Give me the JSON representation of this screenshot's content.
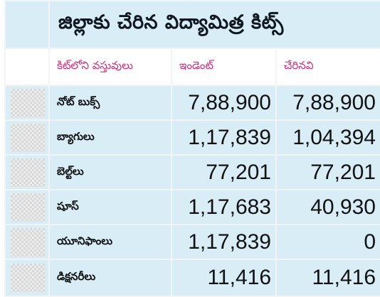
{
  "title": "జిల్లాకు చేరిన విద్యామిత్ర కిట్స్",
  "headers": {
    "item": "కిట్‌లోని వస్తువులు",
    "indent": "ఇండెంట్",
    "received": "చేరినవి"
  },
  "rows": [
    {
      "item": "నోట్ బుక్స్",
      "indent": "7,88,900",
      "received": "7,88,900",
      "icon": "notebooks-thumbnail"
    },
    {
      "item": "బ్యాగులు",
      "indent": "1,17,839",
      "received": "1,04,394",
      "icon": "bags-thumbnail"
    },
    {
      "item": "బెల్ట్‌లు",
      "indent": "77,201",
      "received": "77,201",
      "icon": "belts-thumbnail"
    },
    {
      "item": "షూస్",
      "indent": "1,17,683",
      "received": "40,930",
      "icon": "shoes-thumbnail"
    },
    {
      "item": "యూనిఫాంలు",
      "indent": "1,17,839",
      "received": "0",
      "icon": "uniforms-thumbnail"
    },
    {
      "item": "డిక్షనరీలు",
      "indent": "11,416",
      "received": "11,416",
      "icon": "dictionaries-thumbnail"
    }
  ],
  "colors": {
    "panel": "#d9edf7",
    "header_text": "#d6287a",
    "grid": "#f2f4f6"
  }
}
